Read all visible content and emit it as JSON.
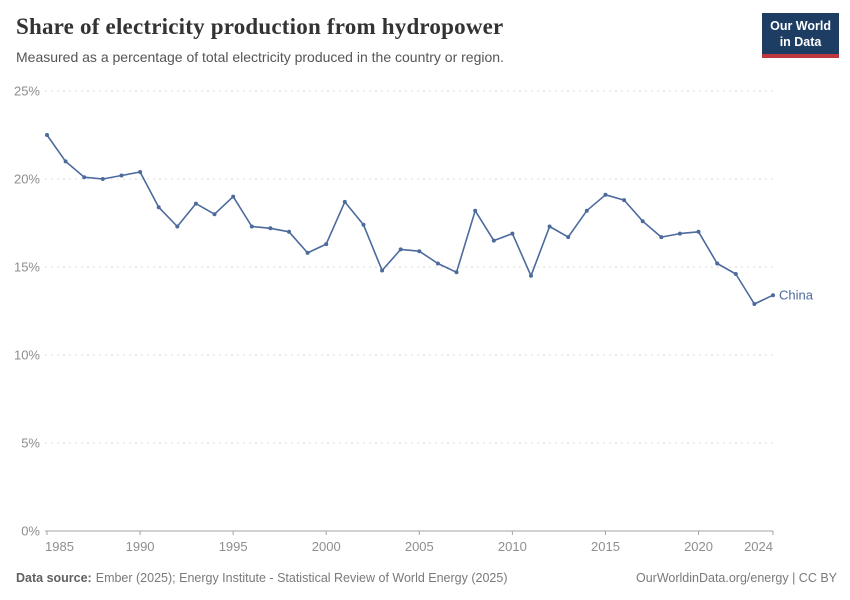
{
  "header": {
    "title": "Share of electricity production from hydropower",
    "subtitle": "Measured as a percentage of total electricity produced in the country or region.",
    "logo": {
      "line1": "Our World",
      "line2": "in Data"
    }
  },
  "chart_data": {
    "type": "line",
    "title": "Share of electricity production from hydropower",
    "xlabel": "",
    "ylabel": "",
    "xlim": [
      1985,
      2024
    ],
    "ylim": [
      0,
      25
    ],
    "x_ticks": [
      1985,
      1990,
      1995,
      2000,
      2005,
      2010,
      2015,
      2020,
      2024
    ],
    "y_ticks": [
      0,
      5,
      10,
      15,
      20,
      25
    ],
    "y_tick_suffix": "%",
    "grid": "horizontal-dashed",
    "legend_position": "end-of-line",
    "series": [
      {
        "name": "China",
        "color": "#4c6a9c",
        "x": [
          1985,
          1986,
          1987,
          1988,
          1989,
          1990,
          1991,
          1992,
          1993,
          1994,
          1995,
          1996,
          1997,
          1998,
          1999,
          2000,
          2001,
          2002,
          2003,
          2004,
          2005,
          2006,
          2007,
          2008,
          2009,
          2010,
          2011,
          2012,
          2013,
          2014,
          2015,
          2016,
          2017,
          2018,
          2019,
          2020,
          2021,
          2022,
          2023,
          2024
        ],
        "values": [
          22.5,
          21.0,
          20.1,
          20.0,
          20.2,
          20.4,
          18.4,
          17.3,
          18.6,
          18.0,
          19.0,
          17.3,
          17.2,
          17.0,
          15.8,
          16.3,
          18.7,
          17.4,
          14.8,
          16.0,
          15.9,
          15.2,
          14.7,
          18.2,
          16.5,
          16.9,
          14.5,
          17.3,
          16.7,
          18.2,
          19.1,
          18.8,
          17.6,
          16.7,
          16.9,
          17.0,
          15.2,
          14.6,
          12.9,
          13.4
        ]
      }
    ]
  },
  "footer": {
    "datasource_label": "Data source:",
    "datasource_text": "Ember (2025); Energy Institute - Statistical Review of World Energy (2025)",
    "credit": "OurWorldinData.org/energy | CC BY"
  },
  "colors": {
    "line": "#4c6a9c",
    "logo_bg": "#1d3d63",
    "logo_stripe": "#c0383f",
    "grid": "#dcdcdc",
    "axis": "#a3a3a3",
    "tick_label": "#8e8e8e"
  }
}
